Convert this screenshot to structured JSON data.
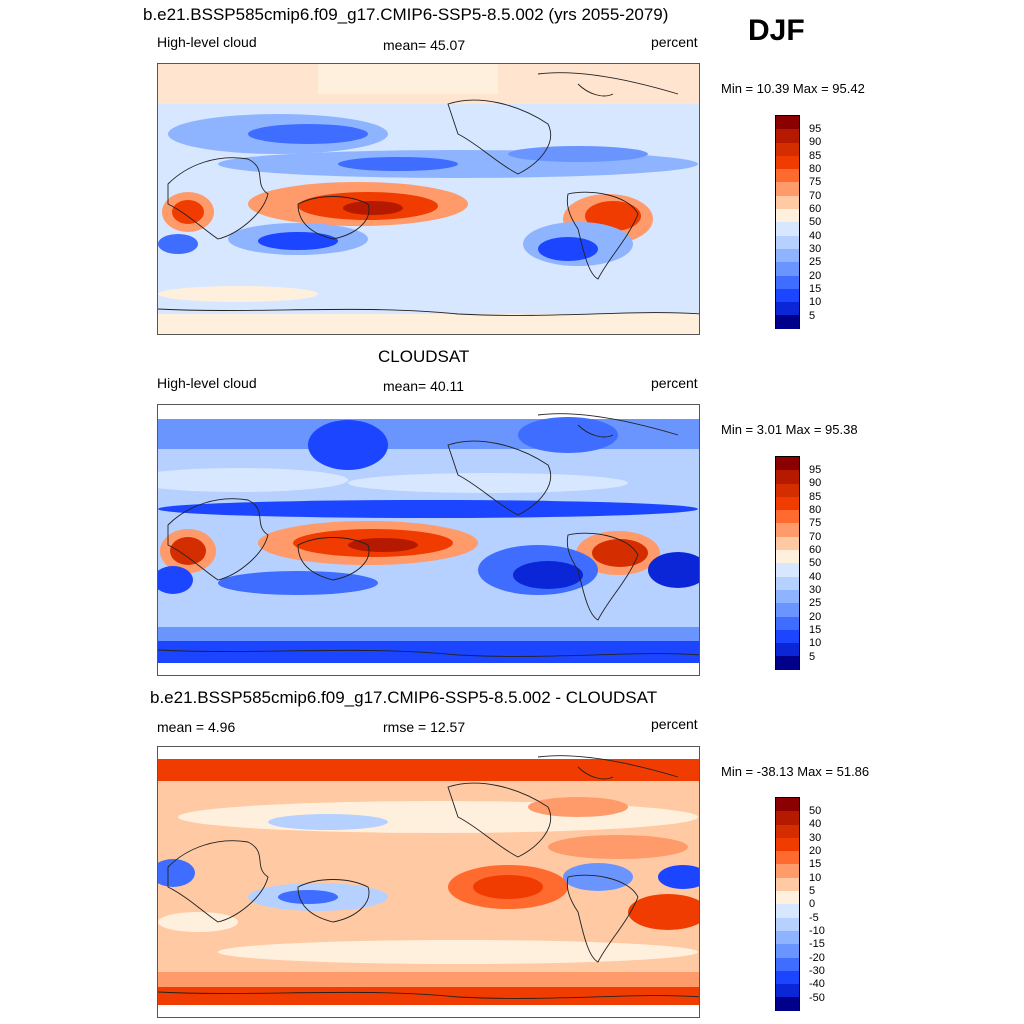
{
  "season": "DJF",
  "panels": [
    {
      "title": "b.e21.BSSP585cmip6.f09_g17.CMIP6-SSP5-8.5.002 (yrs 2055-2079)",
      "left": "High-level cloud",
      "center": "mean=  45.07",
      "right": "percent",
      "minmax": "Min =  10.39 Max =  95.42",
      "colorbar": {
        "colors": [
          "#8b0000",
          "#b51a00",
          "#d42e00",
          "#f03c00",
          "#ff6a2f",
          "#ff9a6a",
          "#ffc9a3",
          "#fff0de",
          "#d7e7ff",
          "#b6d0ff",
          "#8fb4ff",
          "#6a95ff",
          "#3f6dff",
          "#1c45ff",
          "#0a26d6",
          "#00008b"
        ],
        "labels": [
          "95",
          "90",
          "85",
          "80",
          "75",
          "70",
          "60",
          "50",
          "40",
          "30",
          "25",
          "20",
          "15",
          "10",
          "5"
        ]
      }
    },
    {
      "title": "CLOUDSAT",
      "left": "High-level cloud",
      "center": "mean=  40.11",
      "right": "percent",
      "minmax": "Min =   3.01 Max =  95.38",
      "colorbar": {
        "colors": [
          "#8b0000",
          "#b51a00",
          "#d42e00",
          "#f03c00",
          "#ff6a2f",
          "#ff9a6a",
          "#ffc9a3",
          "#fff0de",
          "#d7e7ff",
          "#b6d0ff",
          "#8fb4ff",
          "#6a95ff",
          "#3f6dff",
          "#1c45ff",
          "#0a26d6",
          "#00008b"
        ],
        "labels": [
          "95",
          "90",
          "85",
          "80",
          "75",
          "70",
          "60",
          "50",
          "40",
          "30",
          "25",
          "20",
          "15",
          "10",
          "5"
        ]
      }
    },
    {
      "title": "b.e21.BSSP585cmip6.f09_g17.CMIP6-SSP5-8.5.002 - CLOUDSAT",
      "left": "mean =   4.96",
      "center": "rmse =  12.57",
      "right": "percent",
      "minmax": "Min = -38.13 Max =  51.86",
      "colorbar": {
        "colors": [
          "#8b0000",
          "#b51a00",
          "#d42e00",
          "#f03c00",
          "#ff6a2f",
          "#ff9a6a",
          "#ffc9a3",
          "#fff0de",
          "#d7e7ff",
          "#b6d0ff",
          "#8fb4ff",
          "#6a95ff",
          "#3f6dff",
          "#1c45ff",
          "#0a26d6",
          "#00008b"
        ],
        "labels": [
          "50",
          "40",
          "30",
          "20",
          "15",
          "10",
          "5",
          "0",
          "-5",
          "-10",
          "-15",
          "-20",
          "-30",
          "-40",
          "-50"
        ]
      }
    }
  ]
}
